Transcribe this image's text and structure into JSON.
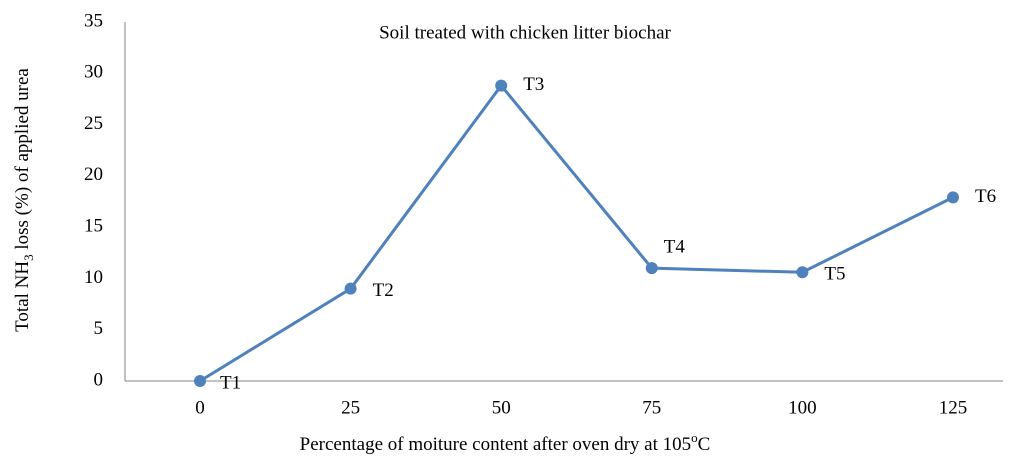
{
  "chart_data": {
    "type": "line",
    "title": "Soil treated with chicken litter biochar",
    "y_label": [
      "Total NH",
      "3",
      " loss (%) of applied urea"
    ],
    "x_label": [
      "Percentage of moiture content after oven dry at 105",
      "o",
      "C"
    ],
    "categories": [
      "0",
      "25",
      "50",
      "75",
      "100",
      "125"
    ],
    "series": [
      {
        "color": "#4f81bd",
        "values": [
          0,
          9,
          28.8,
          11,
          10.6,
          17.9
        ],
        "point_labels": [
          "T1",
          "T2",
          "T3",
          "T4",
          "T5",
          "T6"
        ]
      }
    ],
    "ylim": [
      0,
      35
    ],
    "yticks": [
      0,
      5,
      10,
      15,
      20,
      25,
      30,
      35
    ],
    "grid": false
  }
}
